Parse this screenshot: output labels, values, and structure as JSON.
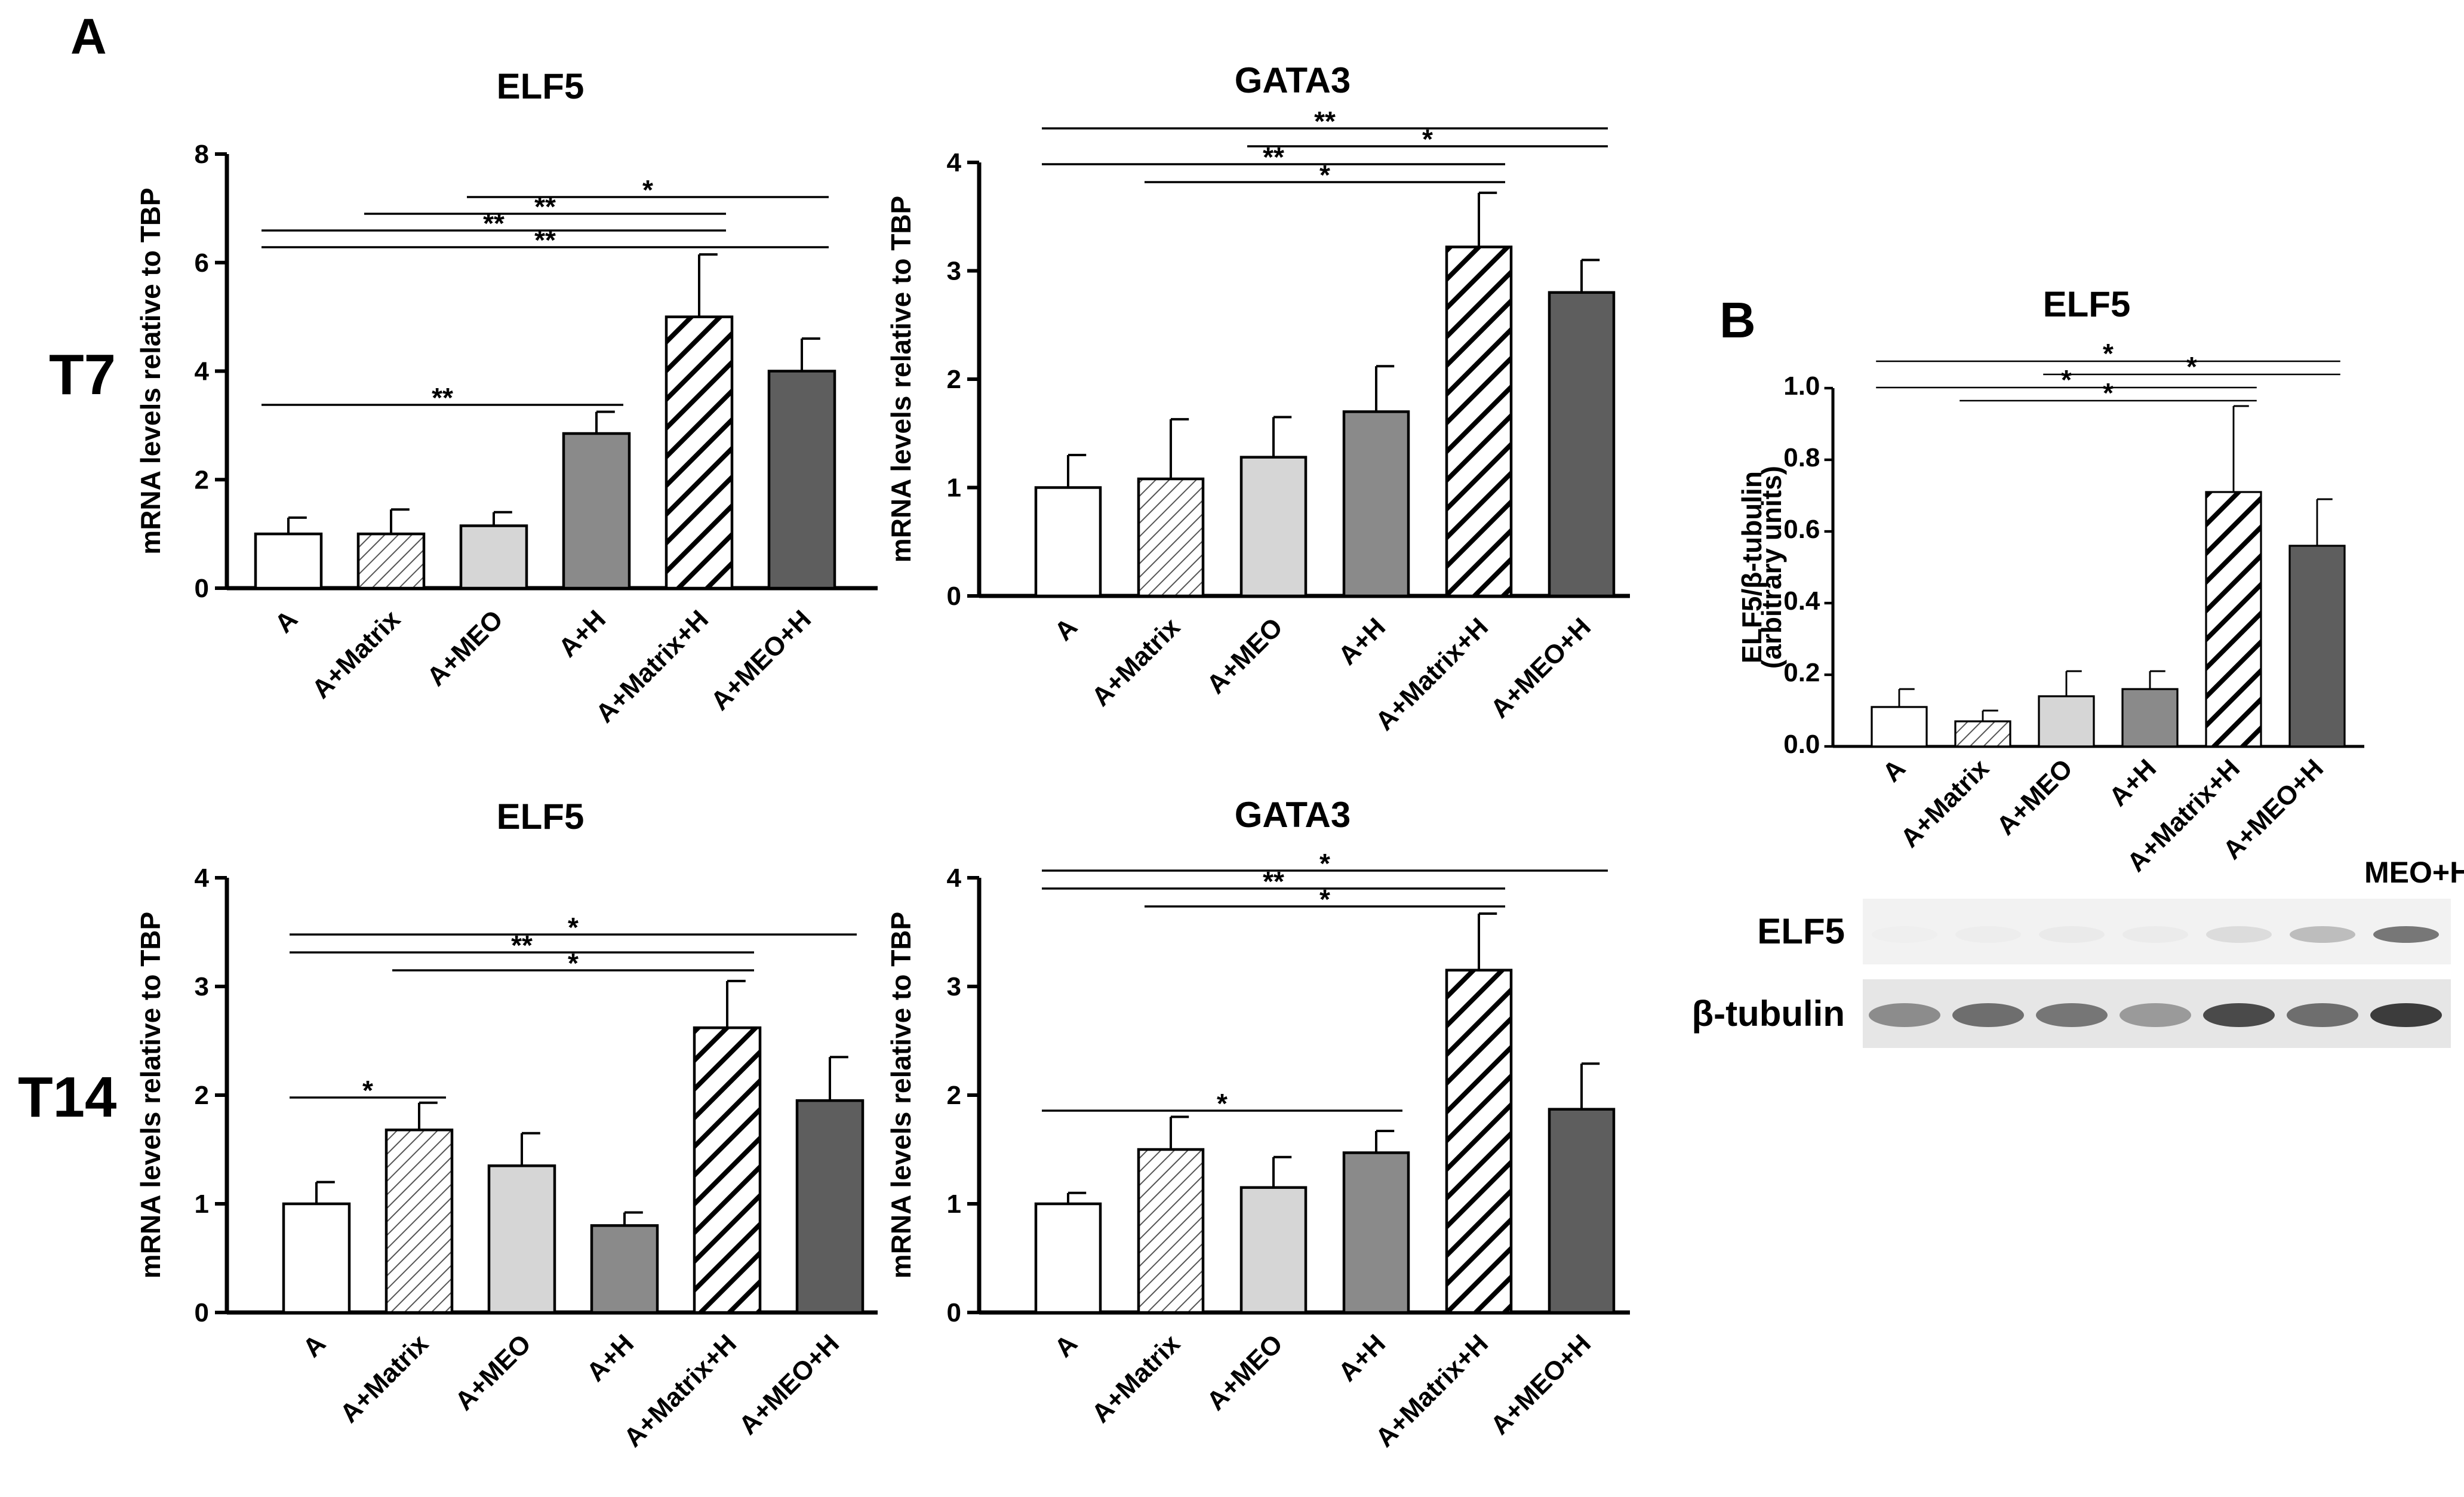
{
  "panel_labels": {
    "a": "A",
    "b": "B"
  },
  "row_labels": {
    "t7": "T7",
    "t14": "T14"
  },
  "blot": {
    "corner_label": "MEO+H",
    "rows": [
      "ELF5",
      "β-tubulin"
    ]
  },
  "colors": {
    "A": "#ffffff",
    "A+Matrix": "hatch-fine",
    "A+MEO": "#d6d6d6",
    "A+H": "#8a8a8a",
    "A+Matrix+H": "hatch-bold",
    "A+MEO+H": "#5e5e5e"
  },
  "chart_data": [
    {
      "id": "t7-elf5",
      "type": "bar",
      "title": "ELF5",
      "ylabel": "mRNA levels relative to TBP",
      "xlabel": "",
      "ylim": [
        0,
        8
      ],
      "yticks": [
        "0",
        "2",
        "4",
        "6",
        "8"
      ],
      "categories": [
        "A",
        "A+Matrix",
        "A+MEO",
        "A+H",
        "A+Matrix+H",
        "A+MEO+H"
      ],
      "values": [
        1.0,
        1.0,
        1.15,
        2.85,
        5.0,
        4.0
      ],
      "errors": [
        0.3,
        0.45,
        0.25,
        0.4,
        1.15,
        0.6
      ],
      "significance": [
        {
          "from": 0,
          "to": 3,
          "label": "**"
        },
        {
          "from": 0,
          "to": 5,
          "label": "**"
        },
        {
          "from": 0,
          "to": 4,
          "label": "**"
        },
        {
          "from": 1,
          "to": 4,
          "label": "**"
        },
        {
          "from": 2,
          "to": 5,
          "label": "*"
        }
      ]
    },
    {
      "id": "t7-gata3",
      "type": "bar",
      "title": "GATA3",
      "ylabel": "mRNA levels relative to TBP",
      "xlabel": "",
      "ylim": [
        0,
        4
      ],
      "yticks": [
        "0",
        "1",
        "2",
        "3",
        "4"
      ],
      "categories": [
        "A",
        "A+Matrix",
        "A+MEO",
        "A+H",
        "A+Matrix+H",
        "A+MEO+H"
      ],
      "values": [
        1.0,
        1.08,
        1.28,
        1.7,
        3.22,
        2.8
      ],
      "errors": [
        0.3,
        0.55,
        0.37,
        0.42,
        0.5,
        0.3
      ],
      "significance": [
        {
          "from": 1,
          "to": 4,
          "label": "*"
        },
        {
          "from": 0,
          "to": 4,
          "label": "**"
        },
        {
          "from": 2,
          "to": 5,
          "label": "*"
        },
        {
          "from": 0,
          "to": 5,
          "label": "**"
        }
      ]
    },
    {
      "id": "t14-elf5",
      "type": "bar",
      "title": "ELF5",
      "ylabel": "mRNA levels relative to TBP",
      "xlabel": "",
      "ylim": [
        0,
        4
      ],
      "yticks": [
        "0",
        "1",
        "2",
        "3",
        "4"
      ],
      "categories": [
        "A",
        "A+Matrix",
        "A+MEO",
        "A+H",
        "A+Matrix+H",
        "A+MEO+H"
      ],
      "values": [
        1.0,
        1.68,
        1.35,
        0.8,
        2.62,
        1.95
      ],
      "errors": [
        0.2,
        0.25,
        0.3,
        0.12,
        0.43,
        0.4
      ],
      "significance": [
        {
          "from": 0,
          "to": 1,
          "label": "*"
        },
        {
          "from": 1,
          "to": 4,
          "label": "*"
        },
        {
          "from": 0,
          "to": 4,
          "label": "**"
        },
        {
          "from": 0,
          "to": 5,
          "label": "*"
        }
      ]
    },
    {
      "id": "t14-gata3",
      "type": "bar",
      "title": "GATA3",
      "ylabel": "mRNA levels relative to TBP",
      "xlabel": "",
      "ylim": [
        0,
        4
      ],
      "yticks": [
        "0",
        "1",
        "2",
        "3",
        "4"
      ],
      "categories": [
        "A",
        "A+Matrix",
        "A+MEO",
        "A+H",
        "A+Matrix+H",
        "A+MEO+H"
      ],
      "values": [
        1.0,
        1.5,
        1.15,
        1.47,
        3.15,
        1.87
      ],
      "errors": [
        0.1,
        0.3,
        0.28,
        0.2,
        0.52,
        0.42
      ],
      "significance": [
        {
          "from": 0,
          "to": 3,
          "label": "*"
        },
        {
          "from": 1,
          "to": 4,
          "label": "*"
        },
        {
          "from": 0,
          "to": 4,
          "label": "**"
        },
        {
          "from": 0,
          "to": 5,
          "label": "*"
        }
      ]
    },
    {
      "id": "b-elf5",
      "type": "bar",
      "title": "ELF5",
      "ylabel": "ELF5/β-tubulin\n(arbitrary units)",
      "xlabel": "",
      "ylim": [
        0,
        1.0
      ],
      "yticks": [
        "0.0",
        "0.2",
        "0.4",
        "0.6",
        "0.8",
        "1.0"
      ],
      "categories": [
        "A",
        "A+Matrix",
        "A+MEO",
        "A+H",
        "A+Matrix+H",
        "A+MEO+H"
      ],
      "values": [
        0.11,
        0.07,
        0.14,
        0.16,
        0.71,
        0.56
      ],
      "errors": [
        0.05,
        0.03,
        0.07,
        0.05,
        0.24,
        0.13
      ],
      "significance": [
        {
          "from": 1,
          "to": 4,
          "label": "*"
        },
        {
          "from": 0,
          "to": 4,
          "label": "*"
        },
        {
          "from": 2,
          "to": 5,
          "label": "*"
        },
        {
          "from": 0,
          "to": 5,
          "label": "*"
        }
      ]
    }
  ]
}
